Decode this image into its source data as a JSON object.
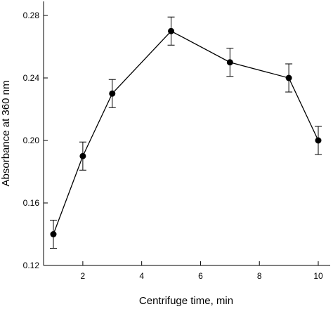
{
  "chart_data": {
    "type": "line",
    "title": "",
    "xlabel": "Centrifuge time, min",
    "ylabel": "Absorbance at 360 nm",
    "xlim": [
      0.5,
      10.5
    ],
    "ylim": [
      0.12,
      0.285
    ],
    "x_ticks": [
      2,
      4,
      6,
      8,
      10
    ],
    "x_tick_labels": [
      "2",
      "4",
      "6",
      "8",
      "10"
    ],
    "y_ticks": [
      0.12,
      0.16,
      0.2,
      0.24,
      0.28
    ],
    "y_tick_labels": [
      "0.12",
      "0.16",
      "0.20",
      "0.24",
      "0.28"
    ],
    "grid": false,
    "legend": "none",
    "series": [
      {
        "color": "#000000",
        "marker": "filled-circle",
        "x": [
          1,
          2,
          3,
          5,
          7,
          9,
          10
        ],
        "y": [
          0.14,
          0.19,
          0.23,
          0.27,
          0.25,
          0.24,
          0.2
        ],
        "error": [
          0.009,
          0.009,
          0.009,
          0.009,
          0.009,
          0.009,
          0.009
        ]
      }
    ]
  }
}
